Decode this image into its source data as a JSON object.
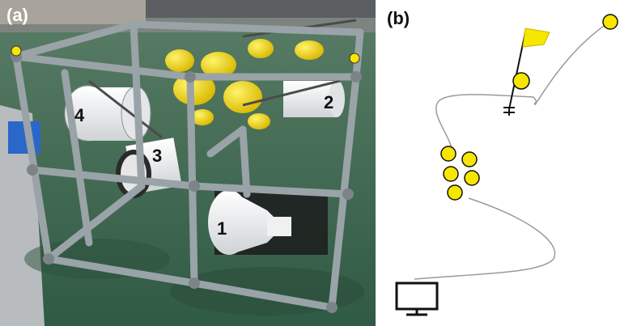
{
  "panel_a": {
    "label": "(a)",
    "device_numbers": [
      "1",
      "2",
      "3",
      "4"
    ]
  },
  "panel_b": {
    "label": "(b)"
  },
  "colors": {
    "float_yellow": "#f6e600",
    "frame_gray": "#9aa3a7",
    "deck_green": "#3e6b52",
    "line_gray": "#9a9a9a"
  },
  "icons": [
    "surface-flag-icon",
    "buoy-icon",
    "anchor-icon",
    "float-cluster-icon",
    "computer-monitor-icon"
  ]
}
